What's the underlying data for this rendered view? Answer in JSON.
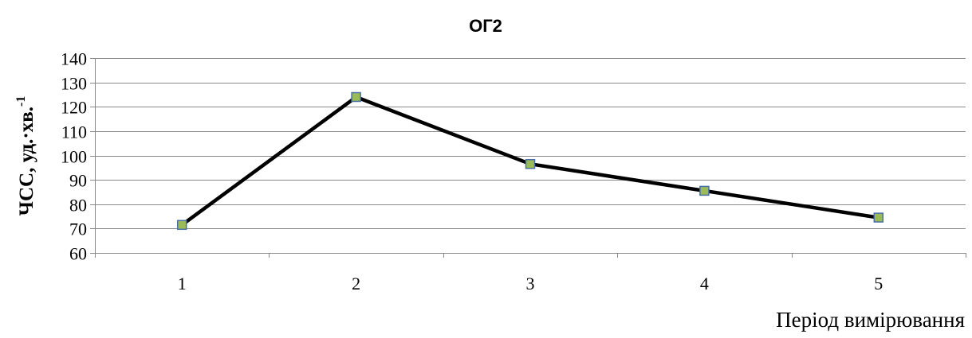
{
  "chart_data": {
    "type": "line",
    "title": "ОГ2",
    "xlabel": "Період вимірювання",
    "ylabel": "ЧСС, уд.·хв.",
    "ylabel_superscript": "-1",
    "categories": [
      "1",
      "2",
      "3",
      "4",
      "5"
    ],
    "series": [
      {
        "values": [
          71.5,
          124,
          96.5,
          85.5,
          74.5
        ]
      }
    ],
    "ylim": [
      60,
      140
    ],
    "yticks": [
      60,
      70,
      80,
      90,
      100,
      110,
      120,
      130,
      140
    ],
    "grid": true,
    "legend": "none",
    "colors": {
      "line": "#000000",
      "marker_fill": "#9bbb59",
      "marker_stroke": "#4a6fa5",
      "grid": "#898989"
    }
  }
}
